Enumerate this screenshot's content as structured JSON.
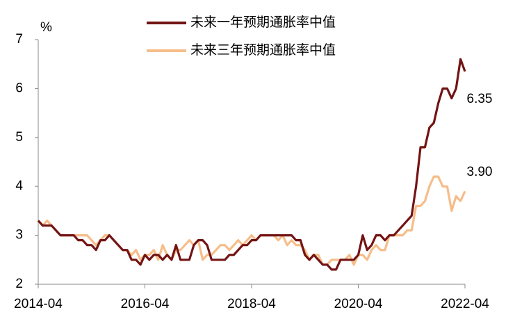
{
  "chart_data": {
    "type": "line",
    "y_label": "%",
    "x": [
      "2014-04",
      "2014-05",
      "2014-06",
      "2014-07",
      "2014-08",
      "2014-09",
      "2014-10",
      "2014-11",
      "2014-12",
      "2015-01",
      "2015-02",
      "2015-03",
      "2015-04",
      "2015-05",
      "2015-06",
      "2015-07",
      "2015-08",
      "2015-09",
      "2015-10",
      "2015-11",
      "2015-12",
      "2016-01",
      "2016-02",
      "2016-03",
      "2016-04",
      "2016-05",
      "2016-06",
      "2016-07",
      "2016-08",
      "2016-09",
      "2016-10",
      "2016-11",
      "2016-12",
      "2017-01",
      "2017-02",
      "2017-03",
      "2017-04",
      "2017-05",
      "2017-06",
      "2017-07",
      "2017-08",
      "2017-09",
      "2017-10",
      "2017-11",
      "2017-12",
      "2018-01",
      "2018-02",
      "2018-03",
      "2018-04",
      "2018-05",
      "2018-06",
      "2018-07",
      "2018-08",
      "2018-09",
      "2018-10",
      "2018-11",
      "2018-12",
      "2019-01",
      "2019-02",
      "2019-03",
      "2019-04",
      "2019-05",
      "2019-06",
      "2019-07",
      "2019-08",
      "2019-09",
      "2019-10",
      "2019-11",
      "2019-12",
      "2020-01",
      "2020-02",
      "2020-03",
      "2020-04",
      "2020-05",
      "2020-06",
      "2020-07",
      "2020-08",
      "2020-09",
      "2020-10",
      "2020-11",
      "2020-12",
      "2021-01",
      "2021-02",
      "2021-03",
      "2021-04",
      "2021-05",
      "2021-06",
      "2021-07",
      "2021-08",
      "2021-09",
      "2021-10",
      "2021-11",
      "2021-12",
      "2022-01",
      "2022-02",
      "2022-03",
      "2022-04"
    ],
    "series": [
      {
        "name": "未来一年预期通胀率中值",
        "color": "#731414",
        "values": [
          3.3,
          3.2,
          3.2,
          3.2,
          3.1,
          3.0,
          3.0,
          3.0,
          3.0,
          2.9,
          2.9,
          2.8,
          2.8,
          2.7,
          2.9,
          2.9,
          3.0,
          2.9,
          2.8,
          2.7,
          2.7,
          2.5,
          2.5,
          2.4,
          2.6,
          2.5,
          2.6,
          2.6,
          2.5,
          2.6,
          2.5,
          2.8,
          2.5,
          2.5,
          2.5,
          2.8,
          2.9,
          2.9,
          2.8,
          2.5,
          2.5,
          2.5,
          2.5,
          2.6,
          2.6,
          2.7,
          2.8,
          2.8,
          2.9,
          2.9,
          3.0,
          3.0,
          3.0,
          3.0,
          3.0,
          3.0,
          3.0,
          3.0,
          2.9,
          2.9,
          2.6,
          2.5,
          2.6,
          2.5,
          2.4,
          2.4,
          2.3,
          2.3,
          2.5,
          2.5,
          2.5,
          2.5,
          2.6,
          3.0,
          2.7,
          2.8,
          3.0,
          3.0,
          2.9,
          3.0,
          3.0,
          3.1,
          3.2,
          3.3,
          3.4,
          4.0,
          4.8,
          4.8,
          5.2,
          5.3,
          5.7,
          6.0,
          6.0,
          5.8,
          6.0,
          6.6,
          6.35
        ]
      },
      {
        "name": "未来三年预期通胀率中值",
        "color": "#f6bd8a",
        "values": [
          3.3,
          3.2,
          3.3,
          3.2,
          3.1,
          3.0,
          3.0,
          3.0,
          3.0,
          3.0,
          3.0,
          3.0,
          2.9,
          2.8,
          2.9,
          3.0,
          3.0,
          2.9,
          2.8,
          2.7,
          2.7,
          2.6,
          2.7,
          2.5,
          2.6,
          2.6,
          2.7,
          2.5,
          2.8,
          2.6,
          2.5,
          2.7,
          2.7,
          2.8,
          2.9,
          2.8,
          2.9,
          2.5,
          2.6,
          2.6,
          2.7,
          2.8,
          2.8,
          2.7,
          2.8,
          2.9,
          2.8,
          2.9,
          3.0,
          2.9,
          3.0,
          3.0,
          3.0,
          3.0,
          2.9,
          3.0,
          2.8,
          2.9,
          2.8,
          2.8,
          2.7,
          2.5,
          2.6,
          2.6,
          2.4,
          2.4,
          2.5,
          2.5,
          2.5,
          2.5,
          2.6,
          2.4,
          2.6,
          2.6,
          2.5,
          2.7,
          2.8,
          2.7,
          2.7,
          3.0,
          3.0,
          3.0,
          3.0,
          3.1,
          3.1,
          3.6,
          3.6,
          3.7,
          4.0,
          4.2,
          4.2,
          4.0,
          4.0,
          3.5,
          3.8,
          3.7,
          3.9
        ]
      }
    ],
    "annotations": [
      "6.35",
      "3.90"
    ],
    "xlim": [
      "2014-04",
      "2022-04"
    ],
    "xticks": [
      "2014-04",
      "2016-04",
      "2018-04",
      "2020-04",
      "2022-04"
    ],
    "ylim": [
      2,
      7
    ],
    "yticks": [
      2,
      3,
      4,
      5,
      6,
      7
    ],
    "legend": "top",
    "grid": false
  }
}
